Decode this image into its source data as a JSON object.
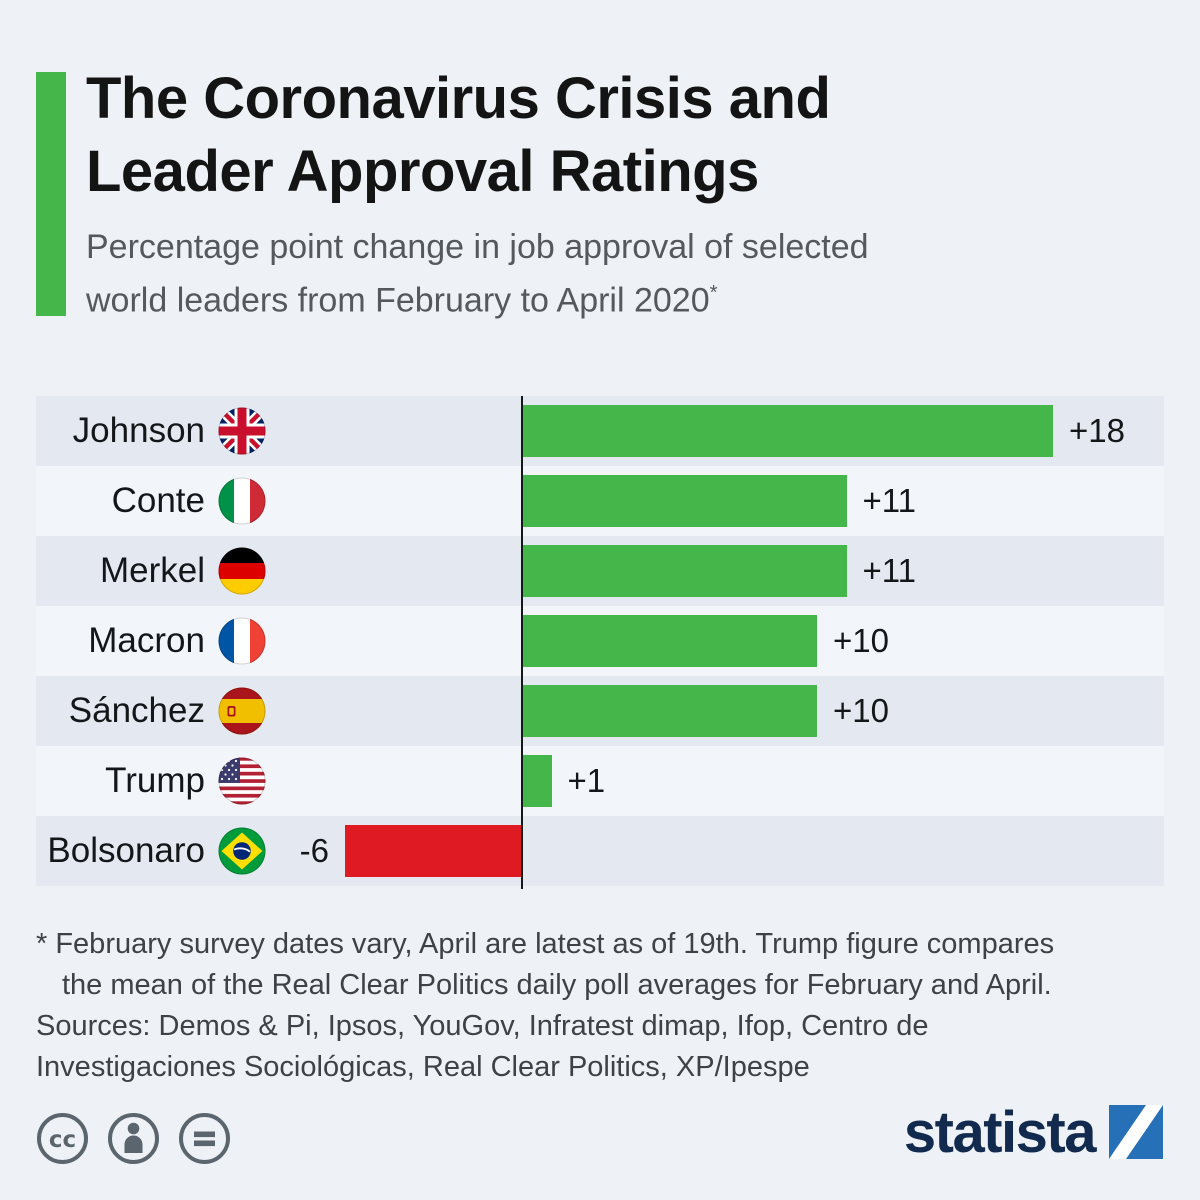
{
  "page": {
    "background_color": "#EEF2F7"
  },
  "header": {
    "title_line1": "The Coronavirus Crisis and",
    "title_line2": "Leader Approval Ratings",
    "subtitle_line1": "Percentage point change in job approval of selected",
    "subtitle_line2": "world leaders from February to April 2020",
    "footnote_marker": "*"
  },
  "chart_data": {
    "type": "bar",
    "orientation": "horizontal",
    "title": "The Coronavirus Crisis and Leader Approval Ratings",
    "unit": "percentage points",
    "baseline": 0,
    "xlim": [
      -6.5,
      21.5
    ],
    "grid": false,
    "legend": false,
    "categories": [
      "Johnson",
      "Conte",
      "Merkel",
      "Macron",
      "Sánchez",
      "Trump",
      "Bolsonaro"
    ],
    "values": [
      18,
      11,
      11,
      10,
      10,
      1,
      -6
    ],
    "value_labels": [
      "+18",
      "+11",
      "+11",
      "+10",
      "+10",
      "+1",
      "-6"
    ],
    "flags": [
      "uk",
      "italy",
      "germany",
      "france",
      "spain",
      "usa",
      "brazil"
    ],
    "flag_icon_names": [
      "flag-uk-icon",
      "flag-italy-icon",
      "flag-germany-icon",
      "flag-france-icon",
      "flag-spain-icon",
      "flag-usa-icon",
      "flag-brazil-icon"
    ],
    "positive_color": "#45B649",
    "negative_color": "#E01A23"
  },
  "footer": {
    "footnote_line1": "* February survey dates vary, April are latest as of 19th. Trump figure compares",
    "footnote_line2": "the mean of the Real Clear Politics daily poll averages for February and April.",
    "sources_line1": "Sources: Demos & Pi, Ipsos, YouGov, Infratest dimap, Ifop, Centro de",
    "sources_line2": "Investigaciones Sociológicas, Real Clear Politics, XP/Ipespe"
  },
  "license": {
    "icons": [
      "cc-icon",
      "attribution-icon",
      "equals-icon"
    ]
  },
  "branding": {
    "logo_text": "statista",
    "logo_color": "#112A4D",
    "mark_color": "#2570B6"
  }
}
